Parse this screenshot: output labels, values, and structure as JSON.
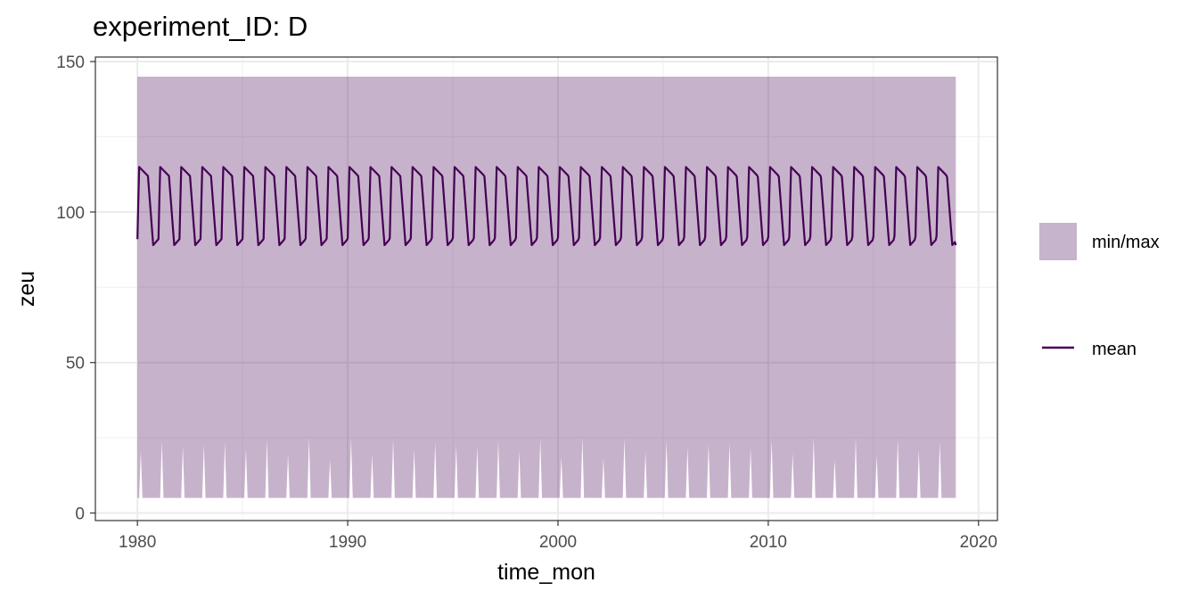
{
  "chart_data": {
    "type": "line",
    "title": "experiment_ID: D",
    "xlabel": "time_mon",
    "ylabel": "zeu",
    "xlim": [
      1978.0,
      2020.9
    ],
    "ylim": [
      -2.5,
      151.5
    ],
    "x_ticks": [
      1980,
      1990,
      2000,
      2010,
      2020
    ],
    "y_ticks": [
      0,
      50,
      100,
      150
    ],
    "grid": true,
    "legend_position": "right",
    "series": [
      {
        "name": "min/max",
        "kind": "ribbon",
        "color": "#440154",
        "opacity": 0.3,
        "x_range": [
          1980.0,
          2018.92
        ],
        "upper": 145,
        "lower_base": 5,
        "lower_peaks_range": [
          10,
          25
        ],
        "note_peaks": "lower bound rises in one narrow spike per year (early season)"
      },
      {
        "name": "mean",
        "kind": "line",
        "color": "#440154",
        "x_range": [
          1980.0,
          2018.92
        ],
        "period_years": 1,
        "seasonal_high": 115,
        "seasonal_low": 89,
        "start_value": 91,
        "end_value": 89
      }
    ],
    "legend": [
      {
        "label": "min/max",
        "kind": "fill",
        "color": "#c6b3cc"
      },
      {
        "label": "mean",
        "kind": "line",
        "color": "#440154"
      }
    ]
  }
}
